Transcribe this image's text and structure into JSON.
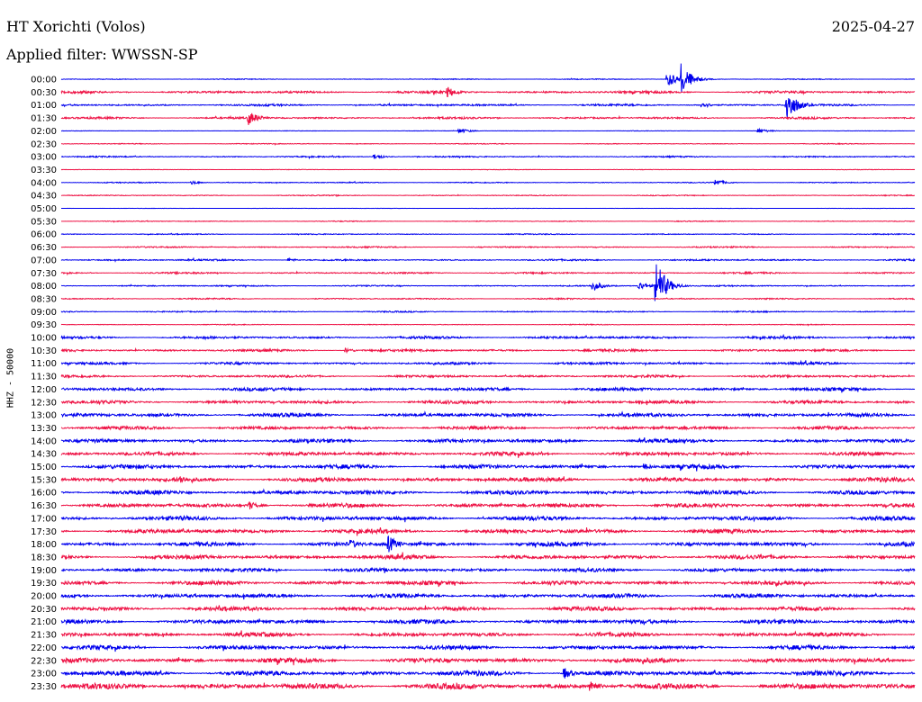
{
  "header": {
    "station": "HT Xorichti (Volos)",
    "date": "2025-04-27",
    "filter": "Applied filter: WWSSN-SP",
    "channel": "HHZ - 50000"
  },
  "chart_data": {
    "type": "line",
    "title": "HT Xorichti (Volos)",
    "subtitle": "Applied filter: WWSSN-SP",
    "ylabel": "HHZ - 50000",
    "date": "2025-04-27",
    "rows": [
      "00:00",
      "00:30",
      "01:00",
      "01:30",
      "02:00",
      "02:30",
      "03:00",
      "03:30",
      "04:00",
      "04:30",
      "05:00",
      "05:30",
      "06:00",
      "06:30",
      "07:00",
      "07:30",
      "08:00",
      "08:30",
      "09:00",
      "09:30",
      "10:00",
      "10:30",
      "11:00",
      "11:30",
      "12:00",
      "12:30",
      "13:00",
      "13:30",
      "14:00",
      "14:30",
      "15:00",
      "15:30",
      "16:00",
      "16:30",
      "17:00",
      "17:30",
      "18:00",
      "18:30",
      "19:00",
      "19:30",
      "20:00",
      "20:30",
      "21:00",
      "21:30",
      "22:00",
      "22:30",
      "23:00",
      "23:30"
    ],
    "row_minutes": 30,
    "series_colors": [
      "#0000ee",
      "#ee1144"
    ],
    "noise_level": [
      0.5,
      1.5,
      1.2,
      1.2,
      0.3,
      0.5,
      0.8,
      0.3,
      0.6,
      0.6,
      0.2,
      0.5,
      0.6,
      0.8,
      1.0,
      1.0,
      0.8,
      0.8,
      0.8,
      0.5,
      1.5,
      1.5,
      1.5,
      1.5,
      2.0,
      2.0,
      2.2,
      2.0,
      2.2,
      2.2,
      2.5,
      2.5,
      2.5,
      2.5,
      2.5,
      2.5,
      2.5,
      2.5,
      2.2,
      2.5,
      2.5,
      2.5,
      2.5,
      2.5,
      2.5,
      2.8,
      3.0,
      3.5
    ],
    "events": [
      {
        "row": "00:00",
        "minute": 21.3,
        "amplitude": 10
      },
      {
        "row": "00:00",
        "minute": 21.8,
        "amplitude": 18
      },
      {
        "row": "00:30",
        "minute": 13.6,
        "amplitude": 6
      },
      {
        "row": "01:00",
        "minute": 25.5,
        "amplitude": 20
      },
      {
        "row": "01:00",
        "minute": 22.5,
        "amplitude": 4
      },
      {
        "row": "01:30",
        "minute": 6.6,
        "amplitude": 8
      },
      {
        "row": "02:00",
        "minute": 14.0,
        "amplitude": 3
      },
      {
        "row": "02:00",
        "minute": 24.5,
        "amplitude": 3
      },
      {
        "row": "03:00",
        "minute": 11.0,
        "amplitude": 3
      },
      {
        "row": "04:00",
        "minute": 23.0,
        "amplitude": 4
      },
      {
        "row": "04:00",
        "minute": 4.6,
        "amplitude": 2
      },
      {
        "row": "07:00",
        "minute": 8.0,
        "amplitude": 2
      },
      {
        "row": "08:00",
        "minute": 20.9,
        "amplitude": 30
      },
      {
        "row": "08:00",
        "minute": 18.7,
        "amplitude": 6
      },
      {
        "row": "08:00",
        "minute": 20.3,
        "amplitude": 5
      },
      {
        "row": "10:30",
        "minute": 10.0,
        "amplitude": 3
      },
      {
        "row": "15:00",
        "minute": 20.5,
        "amplitude": 4
      },
      {
        "row": "15:30",
        "minute": 4.2,
        "amplitude": 5
      },
      {
        "row": "16:30",
        "minute": 6.6,
        "amplitude": 5
      },
      {
        "row": "18:00",
        "minute": 11.5,
        "amplitude": 10
      },
      {
        "row": "18:00",
        "minute": 10.2,
        "amplitude": 5
      },
      {
        "row": "19:30",
        "minute": 25.1,
        "amplitude": 4
      },
      {
        "row": "23:00",
        "minute": 17.7,
        "amplitude": 6
      },
      {
        "row": "23:30",
        "minute": 18.6,
        "amplitude": 8
      }
    ],
    "grid": false,
    "legend": "none"
  }
}
